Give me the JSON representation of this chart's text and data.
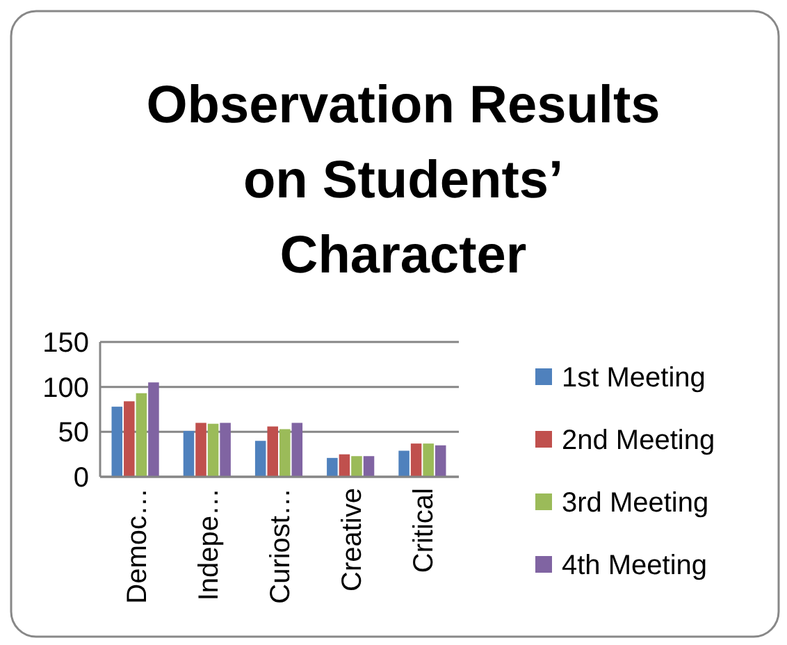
{
  "chart_data": {
    "type": "bar",
    "title": "Observation Results on Students’ Character",
    "categories": [
      "Democ…",
      "Indepe…",
      "Curiost…",
      "Creative",
      "Critical"
    ],
    "series": [
      {
        "name": "1st Meeting",
        "color": "#4f81bd",
        "values": [
          78,
          51,
          40,
          21,
          29
        ]
      },
      {
        "name": "2nd Meeting",
        "color": "#c0504d",
        "values": [
          84,
          60,
          56,
          25,
          37
        ]
      },
      {
        "name": "3rd Meeting",
        "color": "#9bbb59",
        "values": [
          93,
          59,
          53,
          23,
          37
        ]
      },
      {
        "name": "4th Meeting",
        "color": "#8064a2",
        "values": [
          105,
          60,
          60,
          23,
          35
        ]
      }
    ],
    "ylim": [
      0,
      150
    ],
    "yticks": [
      0,
      50,
      100,
      150
    ],
    "grid": "y",
    "legend": "right"
  }
}
